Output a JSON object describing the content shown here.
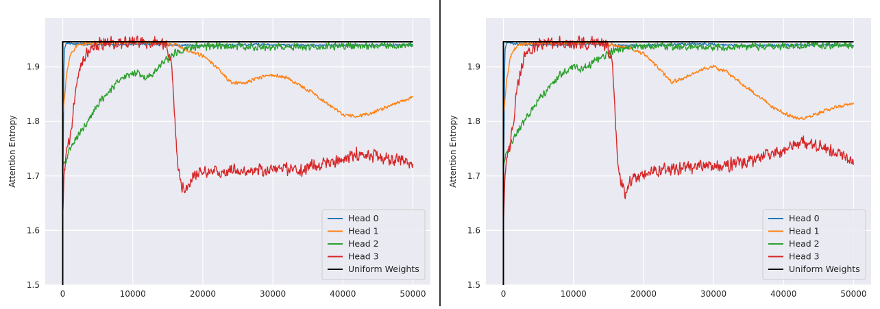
{
  "chart_data": [
    {
      "type": "line",
      "title": "",
      "xlabel": "",
      "ylabel": "Attention Entropy",
      "xlim": [
        -2500,
        52500
      ],
      "ylim": [
        1.5,
        1.99
      ],
      "xticks": [
        0,
        10000,
        20000,
        30000,
        40000,
        50000
      ],
      "yticks": [
        1.5,
        1.6,
        1.7,
        1.8,
        1.9
      ],
      "grid": true,
      "legend_position": "bottom-right",
      "series": [
        {
          "name": "Head 0",
          "color": "#1f77b4",
          "noise": 0.0025,
          "seed": 11,
          "points": [
            [
              0,
              1.66
            ],
            [
              200,
              1.93
            ],
            [
              500,
              1.944
            ],
            [
              2000,
              1.942
            ],
            [
              4000,
              1.94
            ],
            [
              8000,
              1.941
            ],
            [
              12000,
              1.942
            ],
            [
              16000,
              1.94
            ],
            [
              20000,
              1.939
            ],
            [
              24000,
              1.94
            ],
            [
              28000,
              1.941
            ],
            [
              32000,
              1.94
            ],
            [
              36000,
              1.939
            ],
            [
              40000,
              1.94
            ],
            [
              44000,
              1.94
            ],
            [
              48000,
              1.94
            ],
            [
              50000,
              1.94
            ]
          ]
        },
        {
          "name": "Head 1",
          "color": "#ff7f0e",
          "noise": 0.004,
          "seed": 23,
          "points": [
            [
              0,
              1.81
            ],
            [
              500,
              1.88
            ],
            [
              1000,
              1.92
            ],
            [
              2000,
              1.94
            ],
            [
              4000,
              1.943
            ],
            [
              10000,
              1.944
            ],
            [
              14000,
              1.944
            ],
            [
              16000,
              1.94
            ],
            [
              18000,
              1.93
            ],
            [
              20000,
              1.92
            ],
            [
              22000,
              1.9
            ],
            [
              24000,
              1.871
            ],
            [
              26000,
              1.87
            ],
            [
              28000,
              1.88
            ],
            [
              30000,
              1.886
            ],
            [
              32000,
              1.88
            ],
            [
              34000,
              1.865
            ],
            [
              36000,
              1.85
            ],
            [
              38000,
              1.83
            ],
            [
              40000,
              1.812
            ],
            [
              42000,
              1.81
            ],
            [
              44000,
              1.815
            ],
            [
              46000,
              1.825
            ],
            [
              48000,
              1.835
            ],
            [
              50000,
              1.845
            ]
          ]
        },
        {
          "name": "Head 2",
          "color": "#2ca02c",
          "noise": 0.008,
          "seed": 37,
          "points": [
            [
              0,
              1.72
            ],
            [
              500,
              1.73
            ],
            [
              1000,
              1.75
            ],
            [
              2000,
              1.77
            ],
            [
              3000,
              1.79
            ],
            [
              4000,
              1.81
            ],
            [
              5000,
              1.83
            ],
            [
              6000,
              1.845
            ],
            [
              7000,
              1.86
            ],
            [
              8000,
              1.875
            ],
            [
              9000,
              1.885
            ],
            [
              10000,
              1.89
            ],
            [
              11000,
              1.885
            ],
            [
              12000,
              1.88
            ],
            [
              13000,
              1.89
            ],
            [
              14000,
              1.905
            ],
            [
              15000,
              1.915
            ],
            [
              16000,
              1.925
            ],
            [
              17000,
              1.93
            ],
            [
              18000,
              1.935
            ],
            [
              20000,
              1.938
            ],
            [
              24000,
              1.938
            ],
            [
              28000,
              1.937
            ],
            [
              32000,
              1.936
            ],
            [
              36000,
              1.936
            ],
            [
              40000,
              1.938
            ],
            [
              44000,
              1.94
            ],
            [
              48000,
              1.94
            ],
            [
              50000,
              1.94
            ]
          ]
        },
        {
          "name": "Head 3",
          "color": "#d62728",
          "noise": 0.014,
          "seed": 51,
          "points": [
            [
              0,
              1.625
            ],
            [
              200,
              1.71
            ],
            [
              600,
              1.75
            ],
            [
              1000,
              1.77
            ],
            [
              1500,
              1.82
            ],
            [
              2000,
              1.87
            ],
            [
              2500,
              1.9
            ],
            [
              3000,
              1.92
            ],
            [
              4000,
              1.935
            ],
            [
              6000,
              1.944
            ],
            [
              10000,
              1.945
            ],
            [
              14000,
              1.944
            ],
            [
              15000,
              1.935
            ],
            [
              15600,
              1.9
            ],
            [
              16000,
              1.8
            ],
            [
              16400,
              1.72
            ],
            [
              17000,
              1.675
            ],
            [
              18000,
              1.685
            ],
            [
              19000,
              1.7
            ],
            [
              20000,
              1.705
            ],
            [
              22000,
              1.708
            ],
            [
              24000,
              1.71
            ],
            [
              26000,
              1.705
            ],
            [
              28000,
              1.71
            ],
            [
              30000,
              1.712
            ],
            [
              32000,
              1.712
            ],
            [
              34000,
              1.71
            ],
            [
              36000,
              1.72
            ],
            [
              38000,
              1.722
            ],
            [
              40000,
              1.73
            ],
            [
              42000,
              1.74
            ],
            [
              44000,
              1.738
            ],
            [
              46000,
              1.733
            ],
            [
              48000,
              1.728
            ],
            [
              50000,
              1.72
            ]
          ]
        },
        {
          "name": "Uniform Weights",
          "color": "#000000",
          "noise": 0,
          "seed": 0,
          "points": [
            [
              0,
              1.5
            ],
            [
              0,
              1.946
            ],
            [
              50000,
              1.946
            ]
          ]
        }
      ]
    },
    {
      "type": "line",
      "title": "",
      "xlabel": "",
      "ylabel": "Attention Entropy",
      "xlim": [
        -2500,
        52500
      ],
      "ylim": [
        1.5,
        1.99
      ],
      "xticks": [
        0,
        10000,
        20000,
        30000,
        40000,
        50000
      ],
      "yticks": [
        1.5,
        1.6,
        1.7,
        1.8,
        1.9
      ],
      "grid": true,
      "legend_position": "bottom-right",
      "series": [
        {
          "name": "Head 0",
          "color": "#1f77b4",
          "noise": 0.0025,
          "seed": 13,
          "points": [
            [
              0,
              1.66
            ],
            [
              200,
              1.93
            ],
            [
              500,
              1.944
            ],
            [
              2000,
              1.942
            ],
            [
              4000,
              1.94
            ],
            [
              8000,
              1.941
            ],
            [
              12000,
              1.942
            ],
            [
              16000,
              1.94
            ],
            [
              20000,
              1.939
            ],
            [
              24000,
              1.941
            ],
            [
              28000,
              1.942
            ],
            [
              32000,
              1.94
            ],
            [
              36000,
              1.939
            ],
            [
              40000,
              1.94
            ],
            [
              44000,
              1.94
            ],
            [
              48000,
              1.94
            ],
            [
              50000,
              1.94
            ]
          ]
        },
        {
          "name": "Head 1",
          "color": "#ff7f0e",
          "noise": 0.004,
          "seed": 29,
          "points": [
            [
              0,
              1.81
            ],
            [
              500,
              1.88
            ],
            [
              1000,
              1.92
            ],
            [
              2000,
              1.94
            ],
            [
              4000,
              1.943
            ],
            [
              10000,
              1.944
            ],
            [
              14000,
              1.944
            ],
            [
              16000,
              1.94
            ],
            [
              18000,
              1.935
            ],
            [
              20000,
              1.925
            ],
            [
              22000,
              1.9
            ],
            [
              24000,
              1.872
            ],
            [
              26000,
              1.88
            ],
            [
              28000,
              1.895
            ],
            [
              30000,
              1.9
            ],
            [
              32000,
              1.89
            ],
            [
              34000,
              1.87
            ],
            [
              36000,
              1.85
            ],
            [
              38000,
              1.83
            ],
            [
              40000,
              1.815
            ],
            [
              42000,
              1.805
            ],
            [
              44000,
              1.81
            ],
            [
              46000,
              1.82
            ],
            [
              48000,
              1.828
            ],
            [
              50000,
              1.833
            ]
          ]
        },
        {
          "name": "Head 2",
          "color": "#2ca02c",
          "noise": 0.008,
          "seed": 41,
          "points": [
            [
              0,
              1.72
            ],
            [
              500,
              1.74
            ],
            [
              1000,
              1.76
            ],
            [
              2000,
              1.78
            ],
            [
              3000,
              1.8
            ],
            [
              4000,
              1.82
            ],
            [
              5000,
              1.84
            ],
            [
              6000,
              1.855
            ],
            [
              7000,
              1.87
            ],
            [
              8000,
              1.885
            ],
            [
              9000,
              1.895
            ],
            [
              10000,
              1.9
            ],
            [
              11000,
              1.895
            ],
            [
              12000,
              1.9
            ],
            [
              13000,
              1.91
            ],
            [
              14000,
              1.918
            ],
            [
              15000,
              1.925
            ],
            [
              16000,
              1.93
            ],
            [
              17000,
              1.933
            ],
            [
              18000,
              1.936
            ],
            [
              20000,
              1.938
            ],
            [
              24000,
              1.938
            ],
            [
              28000,
              1.937
            ],
            [
              32000,
              1.936
            ],
            [
              36000,
              1.937
            ],
            [
              40000,
              1.938
            ],
            [
              44000,
              1.94
            ],
            [
              48000,
              1.94
            ],
            [
              50000,
              1.94
            ]
          ]
        },
        {
          "name": "Head 3",
          "color": "#d62728",
          "noise": 0.014,
          "seed": 57,
          "points": [
            [
              0,
              1.61
            ],
            [
              200,
              1.7
            ],
            [
              600,
              1.74
            ],
            [
              1000,
              1.76
            ],
            [
              1500,
              1.81
            ],
            [
              2000,
              1.86
            ],
            [
              2500,
              1.9
            ],
            [
              3000,
              1.92
            ],
            [
              4000,
              1.935
            ],
            [
              6000,
              1.944
            ],
            [
              10000,
              1.945
            ],
            [
              14000,
              1.944
            ],
            [
              15000,
              1.935
            ],
            [
              15600,
              1.9
            ],
            [
              16000,
              1.8
            ],
            [
              16400,
              1.72
            ],
            [
              17000,
              1.68
            ],
            [
              17500,
              1.665
            ],
            [
              18000,
              1.69
            ],
            [
              19000,
              1.7
            ],
            [
              20000,
              1.705
            ],
            [
              22000,
              1.71
            ],
            [
              24000,
              1.712
            ],
            [
              26000,
              1.715
            ],
            [
              28000,
              1.72
            ],
            [
              30000,
              1.722
            ],
            [
              32000,
              1.72
            ],
            [
              34000,
              1.725
            ],
            [
              36000,
              1.73
            ],
            [
              38000,
              1.74
            ],
            [
              40000,
              1.745
            ],
            [
              42000,
              1.76
            ],
            [
              44000,
              1.76
            ],
            [
              46000,
              1.75
            ],
            [
              48000,
              1.74
            ],
            [
              50000,
              1.73
            ]
          ]
        },
        {
          "name": "Uniform Weights",
          "color": "#000000",
          "noise": 0,
          "seed": 0,
          "points": [
            [
              0,
              1.5
            ],
            [
              0,
              1.946
            ],
            [
              50000,
              1.946
            ]
          ]
        }
      ]
    }
  ]
}
